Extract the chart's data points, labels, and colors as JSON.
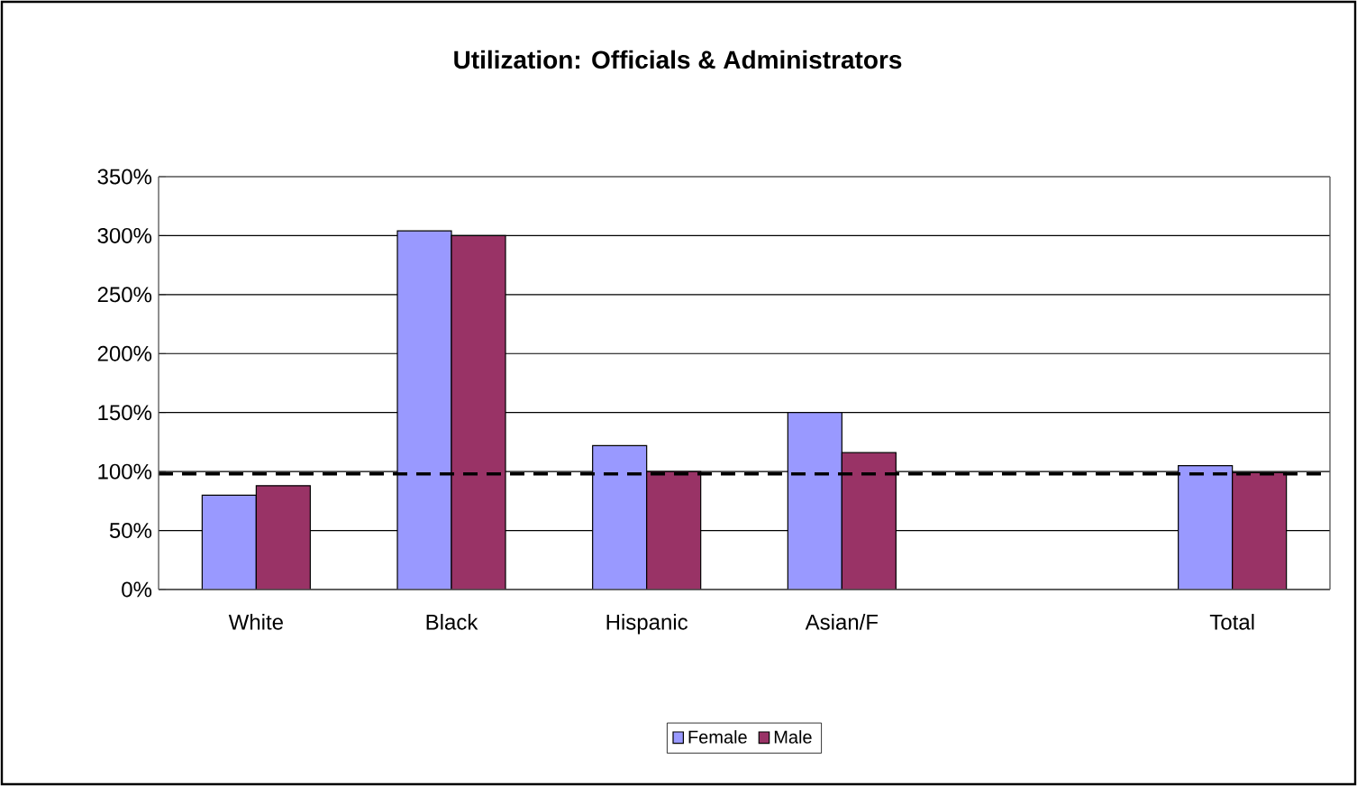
{
  "chart_data": {
    "type": "bar",
    "title": "Utilization: Officials & Administrators",
    "categories": [
      "White",
      "Black",
      "Hispanic",
      "Asian/F",
      null,
      "Total"
    ],
    "series": [
      {
        "name": "Female",
        "color": "#9999ff",
        "values": [
          80,
          304,
          122,
          150,
          null,
          105
        ]
      },
      {
        "name": "Male",
        "color": "#993366",
        "values": [
          88,
          300,
          100,
          116,
          null,
          99
        ]
      }
    ],
    "ylim": [
      0,
      350
    ],
    "yticks": [
      {
        "value": 0,
        "label": "0%"
      },
      {
        "value": 50,
        "label": "50%"
      },
      {
        "value": 100,
        "label": "100%"
      },
      {
        "value": 150,
        "label": "150%"
      },
      {
        "value": 200,
        "label": "200%"
      },
      {
        "value": 250,
        "label": "250%"
      },
      {
        "value": 300,
        "label": "300%"
      },
      {
        "value": 350,
        "label": "350%"
      }
    ],
    "ref_lines": [
      {
        "axis": "y",
        "value": 98,
        "color": "#000000",
        "line_style": "dashed"
      }
    ],
    "grid": "y",
    "legend": "bottom"
  }
}
